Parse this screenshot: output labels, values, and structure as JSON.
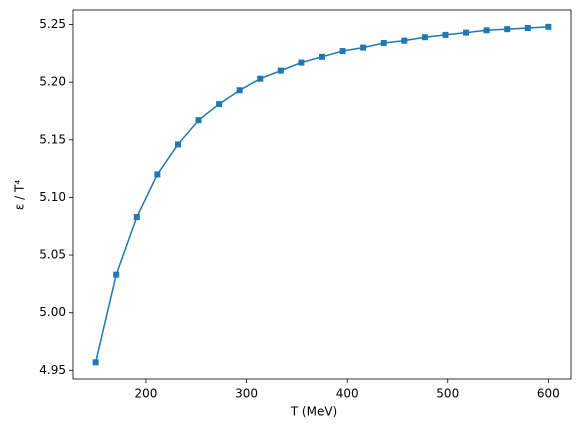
{
  "chart_data": {
    "type": "line",
    "x_label": "T (MeV)",
    "y_label": "ε / T⁴",
    "x": [
      150,
      170.45,
      190.91,
      211.36,
      231.82,
      252.27,
      272.73,
      293.18,
      313.64,
      334.09,
      354.55,
      375,
      395.45,
      415.91,
      436.36,
      456.82,
      477.27,
      497.73,
      518.18,
      538.64,
      559.09,
      579.55,
      600
    ],
    "series": [
      {
        "color": "#1f77b4",
        "values": [
          4.957,
          5.033,
          5.083,
          5.12,
          5.146,
          5.167,
          5.181,
          5.193,
          5.203,
          5.21,
          5.217,
          5.222,
          5.227,
          5.23,
          5.234,
          5.236,
          5.239,
          5.241,
          5.243,
          5.245,
          5.246,
          5.247,
          5.248
        ]
      }
    ],
    "xlim": [
      127.5,
      622.5
    ],
    "xticks": [
      200,
      300,
      400,
      500,
      600
    ],
    "ylim": [
      4.9425,
      5.2626
    ],
    "yticks": [
      4.95,
      {
        "value": 5.0,
        "label": "5.00"
      },
      5.05,
      {
        "value": 5.1,
        "label": "5.10"
      },
      5.15,
      {
        "value": 5.2,
        "label": "5.20"
      },
      5.25
    ],
    "grid": false
  }
}
